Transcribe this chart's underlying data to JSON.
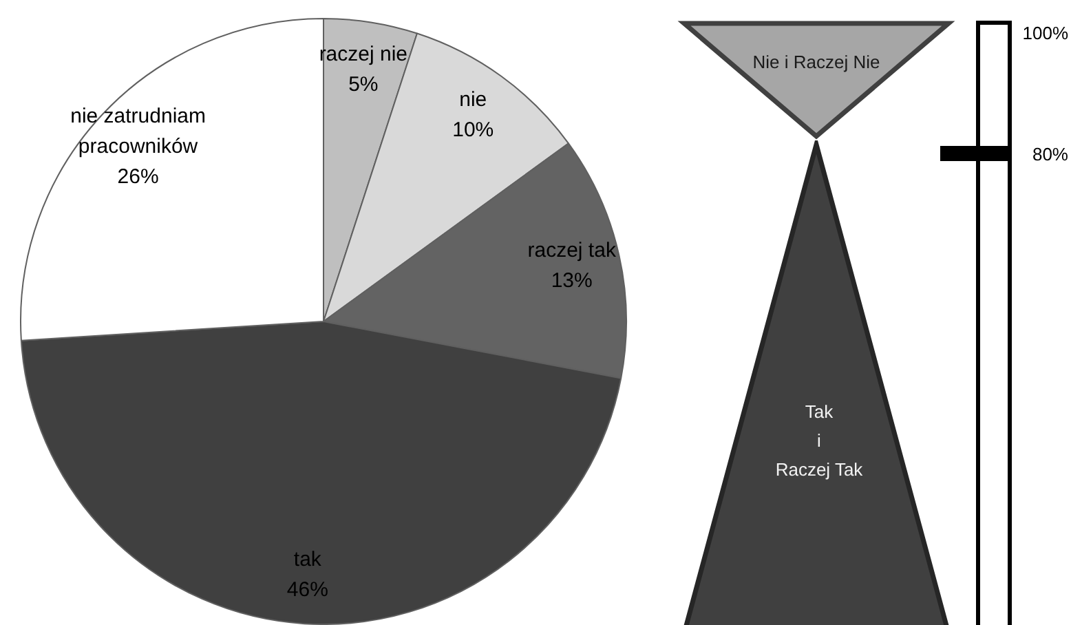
{
  "chart_data": [
    {
      "type": "pie",
      "categories": [
        "raczej nie",
        "nie",
        "raczej tak",
        "tak",
        "nie zatrudniam pracowników"
      ],
      "values": [
        5,
        10,
        13,
        46,
        26
      ],
      "colors": [
        "#bfbfbf",
        "#d9d9d9",
        "#636363",
        "#404040",
        "#ffffff"
      ],
      "value_labels": [
        "5%",
        "10%",
        "13%",
        "46%",
        "26%"
      ]
    },
    {
      "type": "other",
      "annotations": [
        "Nie i Raczej Nie",
        "Tak\ni\nRaczej Tak",
        "100%",
        "80%"
      ]
    }
  ]
}
